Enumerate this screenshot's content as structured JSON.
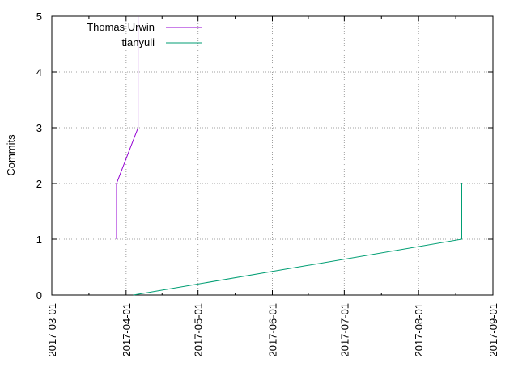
{
  "chart_data": {
    "type": "line",
    "title": "",
    "xlabel": "",
    "ylabel": "Commits",
    "xlim": [
      "2017-03-01",
      "2017-09-01"
    ],
    "ylim": [
      0,
      5
    ],
    "grid": true,
    "legend_position": "top-left",
    "x_ticks": [
      "2017-03-01",
      "2017-04-01",
      "2017-05-01",
      "2017-06-01",
      "2017-07-01",
      "2017-08-01",
      "2017-09-01"
    ],
    "y_ticks": [
      "0",
      "1",
      "2",
      "3",
      "4",
      "5"
    ],
    "series": [
      {
        "name": "Thomas Urwin",
        "color": "#9400d3",
        "points": [
          {
            "x": "2017-03-28",
            "y": 1
          },
          {
            "x": "2017-03-28",
            "y": 2
          },
          {
            "x": "2017-04-06",
            "y": 3
          },
          {
            "x": "2017-04-06",
            "y": 5
          }
        ]
      },
      {
        "name": "tianyuli",
        "color": "#009e73",
        "points": [
          {
            "x": "2017-04-04",
            "y": 0
          },
          {
            "x": "2017-08-19",
            "y": 1
          },
          {
            "x": "2017-08-19",
            "y": 2
          }
        ]
      }
    ]
  }
}
